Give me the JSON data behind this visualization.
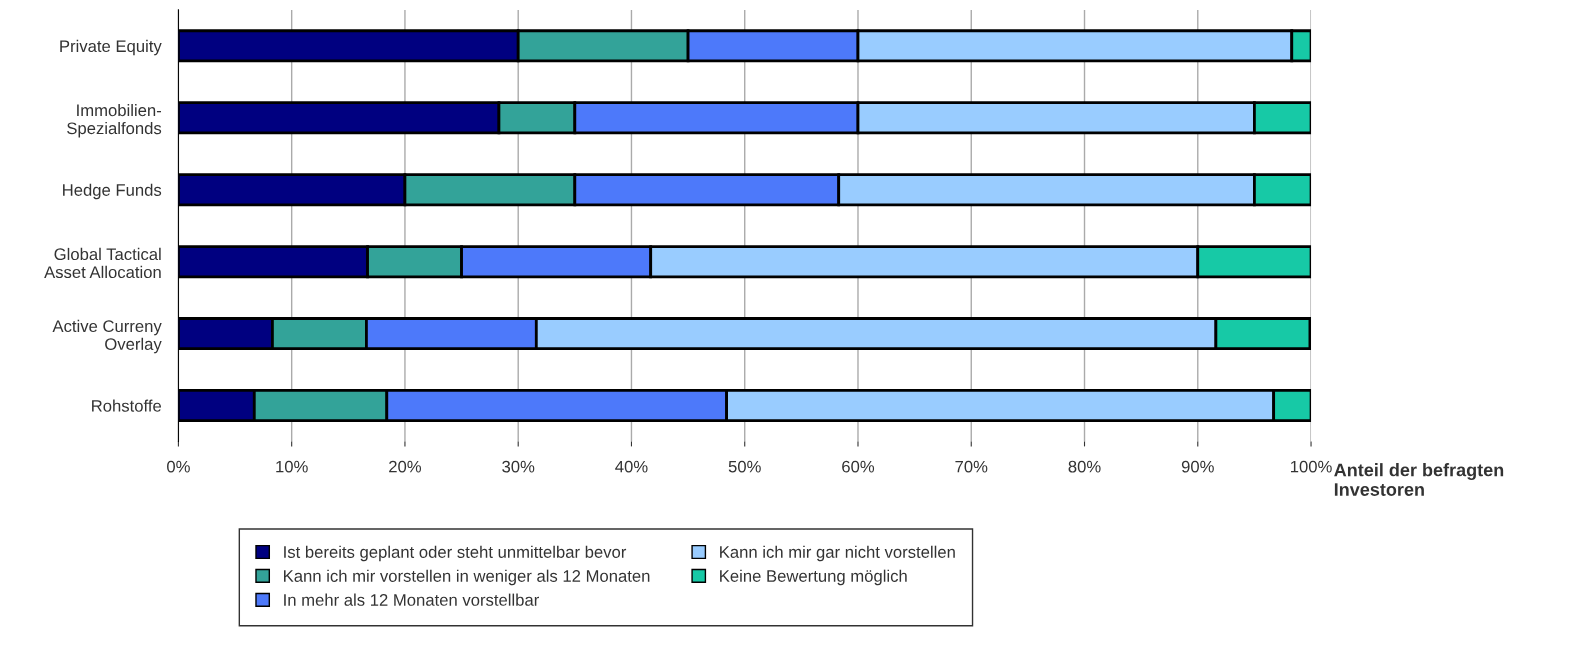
{
  "chart_data": {
    "type": "bar",
    "orientation": "horizontal",
    "stacked": true,
    "categories": [
      "Private Equity",
      "Immobilien-\nSpezialfonds",
      "Hedge Funds",
      "Global Tactical\nAsset Allocation",
      "Active Curreny\nOverlay",
      "Rohstoffe"
    ],
    "series": [
      {
        "name": "Ist bereits geplant oder steht unmittelbar bevor",
        "color": "#000080",
        "values": [
          30,
          28.3,
          20,
          16.7,
          8.3,
          6.7
        ]
      },
      {
        "name": "Kann ich mir vorstellen in weniger als 12 Monaten",
        "color": "#33a399",
        "values": [
          15,
          6.7,
          15,
          8.3,
          8.3,
          11.7
        ]
      },
      {
        "name": "In mehr als 12 Monaten vorstellbar",
        "color": "#4d79fa",
        "values": [
          15,
          25,
          23.3,
          16.7,
          15,
          30
        ]
      },
      {
        "name": "Kann ich mir gar nicht vorstellen",
        "color": "#99ccff",
        "values": [
          38.3,
          35,
          36.7,
          48.3,
          60,
          48.3
        ]
      },
      {
        "name": "Keine Bewertung möglich",
        "color": "#17c9a6",
        "values": [
          1.7,
          5,
          5,
          10,
          8.3,
          3.3
        ]
      }
    ],
    "xlabel": "Anteil der befragten\nInvestoren",
    "xlim": [
      0,
      100
    ],
    "xticks": [
      {
        "value": 0,
        "label": "0%"
      },
      {
        "value": 10,
        "label": "10%"
      },
      {
        "value": 20,
        "label": "20%"
      },
      {
        "value": 30,
        "label": "30%"
      },
      {
        "value": 40,
        "label": "40%"
      },
      {
        "value": 50,
        "label": "50%"
      },
      {
        "value": 60,
        "label": "60%"
      },
      {
        "value": 70,
        "label": "70%"
      },
      {
        "value": 80,
        "label": "80%"
      },
      {
        "value": 90,
        "label": "90%"
      },
      {
        "value": 100,
        "label": "100%"
      }
    ],
    "grid": "x",
    "legend": "bottom"
  }
}
